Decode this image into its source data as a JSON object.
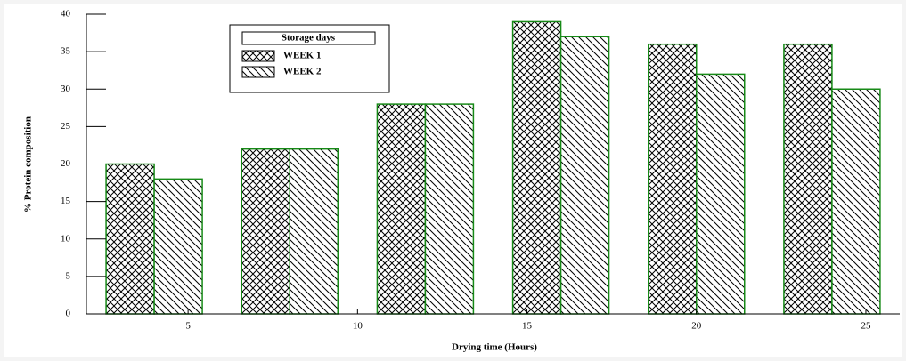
{
  "chart_data": {
    "type": "bar",
    "x_label": "Drying time (Hours)",
    "y_label": "% Protein composition",
    "legend_title": "Storage days",
    "x": [
      4,
      8,
      12,
      16,
      20,
      24
    ],
    "series": [
      {
        "name": "WEEK 1",
        "color": "#178a17",
        "hatch": "crosshatch",
        "values": [
          20,
          22,
          28,
          39,
          36,
          36
        ]
      },
      {
        "name": "WEEK 2",
        "color": "#178a17",
        "hatch": "diagonal",
        "values": [
          18,
          22,
          28,
          37,
          32,
          30
        ]
      }
    ],
    "xlim": [
      2,
      26
    ],
    "xticks": [
      5,
      10,
      15,
      20,
      25
    ],
    "ylim": [
      0,
      40
    ],
    "yticks": [
      0,
      5,
      10,
      15,
      20,
      25,
      30,
      35,
      40
    ],
    "legend": "upper left"
  }
}
